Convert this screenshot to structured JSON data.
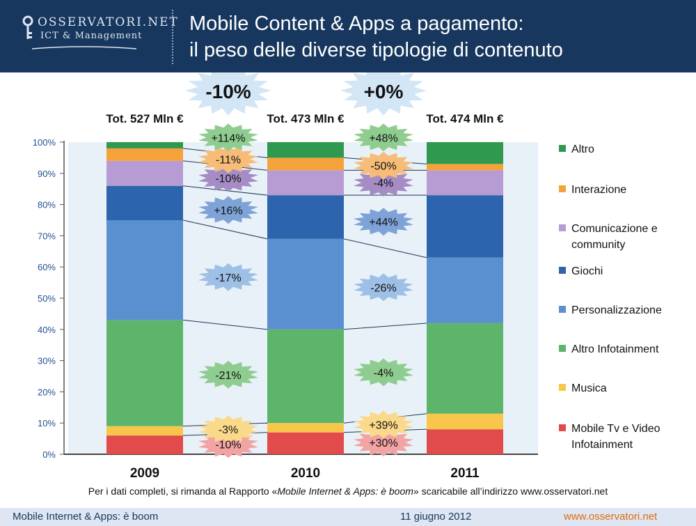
{
  "header": {
    "logo_name": "OSSERVATORI.NET",
    "logo_sub": "ICT & Management",
    "title_line1": "Mobile Content & Apps a pagamento:",
    "title_line2": "il peso delle diverse tipologie di contenuto"
  },
  "chart_data": {
    "type": "bar",
    "stacked": true,
    "categories": [
      "2009",
      "2010",
      "2011"
    ],
    "totals": [
      "Tot. 527 Mln €",
      "Tot. 473 Mln €",
      "Tot. 474 Mln €"
    ],
    "yticks": [
      "0%",
      "10%",
      "20%",
      "30%",
      "40%",
      "50%",
      "60%",
      "70%",
      "80%",
      "90%",
      "100%"
    ],
    "ylim": [
      0,
      100
    ],
    "series": [
      {
        "name": "Mobile Tv e Video Infotainment",
        "legend": [
          "Mobile Tv e Video",
          "Infotainment"
        ],
        "color": "#e14b4b",
        "values": [
          6,
          7,
          8
        ]
      },
      {
        "name": "Musica",
        "legend": [
          "Musica"
        ],
        "color": "#f9c64c",
        "values": [
          3,
          3,
          5
        ]
      },
      {
        "name": "Altro Infotainment",
        "legend": [
          "Altro Infotainment"
        ],
        "color": "#5cb56a",
        "values": [
          34,
          30,
          29
        ]
      },
      {
        "name": "Personalizzazione",
        "legend": [
          "Personalizzazione"
        ],
        "color": "#5a8fd0",
        "values": [
          32,
          29,
          21
        ]
      },
      {
        "name": "Giochi",
        "legend": [
          "Giochi"
        ],
        "color": "#2d64ae",
        "values": [
          11,
          14,
          20
        ]
      },
      {
        "name": "Comunicazione e community",
        "legend": [
          "Comunicazione e",
          "community"
        ],
        "color": "#b79bd3",
        "values": [
          8,
          8,
          8
        ]
      },
      {
        "name": "Interazione",
        "legend": [
          "Interazione"
        ],
        "color": "#f5a23a",
        "values": [
          4,
          4,
          2
        ]
      },
      {
        "name": "Altro",
        "legend": [
          "Altro"
        ],
        "color": "#2f9a4f",
        "values": [
          2,
          5,
          7
        ]
      }
    ],
    "total_changes": [
      "-10%",
      "+0%"
    ],
    "series_changes": [
      [
        "-10%",
        "+30%"
      ],
      [
        "-3%",
        "+39%"
      ],
      [
        "-21%",
        "-4%"
      ],
      [
        "-17%",
        "-26%"
      ],
      [
        "+16%",
        "+44%"
      ],
      [
        "-10%",
        "-4%"
      ],
      [
        "-11%",
        "-50%"
      ],
      [
        "+114%",
        "+48%"
      ]
    ]
  },
  "colors": {
    "header": "#17375e",
    "band": "#e8f1f8",
    "burst_total": "#d3e6f6",
    "burst_fill": [
      "#f2a3a3",
      "#fbd98a",
      "#8fcc8f",
      "#9ebfe6",
      "#7fa3d6",
      "#a58cc4",
      "#f7bc77",
      "#8fcc8f"
    ]
  },
  "footer": {
    "note_pre": "Per i dati completi, si rimanda al Rapporto «",
    "note_italic": "Mobile Internet & Apps: è boom",
    "note_post": "» scaricabile all’indirizzo www.osservatori.net",
    "left": "Mobile Internet & Apps: è boom",
    "date": "11 giugno 2012",
    "site": "www.osservatori.net"
  }
}
